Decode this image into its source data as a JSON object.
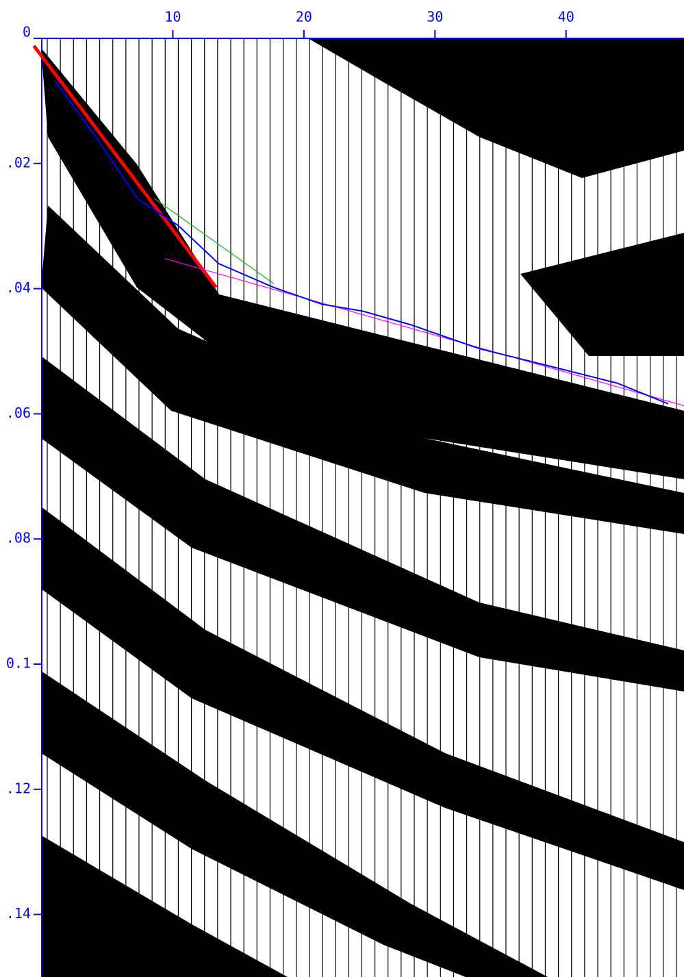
{
  "chart_data": {
    "type": "seismic",
    "xlim": [
      0,
      49
    ],
    "xticks": [
      10,
      20,
      30,
      40
    ],
    "ylim": [
      0,
      0.15
    ],
    "yticks": [
      0,
      {
        "value": 0.02,
        "label": ".02"
      },
      {
        "value": 0.04,
        "label": ".04"
      },
      {
        "value": 0.06,
        "label": ".06"
      },
      {
        "value": 0.08,
        "label": ".08"
      },
      0.1,
      {
        "value": 0.12,
        "label": ".12"
      },
      {
        "value": 0.14,
        "label": ".14"
      }
    ],
    "axis_color": "#0000ff",
    "series": [
      {
        "color": "#ff0000",
        "x": [
          -0.6,
          13.3
        ],
        "values": [
          0.0012,
          0.0398
        ]
      },
      {
        "color": "#ff00ff",
        "x": [
          9.4,
          49
        ],
        "values": [
          0.0352,
          0.0587
        ]
      },
      {
        "color": "#00c000",
        "x": [
          8.6,
          17.7
        ],
        "values": [
          0.0256,
          0.0392
        ]
      },
      {
        "color": "#0000ff",
        "x": [
          1.0,
          4.1,
          7.3,
          10.4,
          13.5,
          17.7,
          21.4,
          24.5,
          28.2,
          33.4,
          38.6,
          43.9,
          47.8
        ],
        "values": [
          0.0068,
          0.0157,
          0.0256,
          0.0299,
          0.036,
          0.0398,
          0.0425,
          0.0436,
          0.0458,
          0.0496,
          0.0523,
          0.0551,
          0.0584
        ]
      }
    ]
  }
}
